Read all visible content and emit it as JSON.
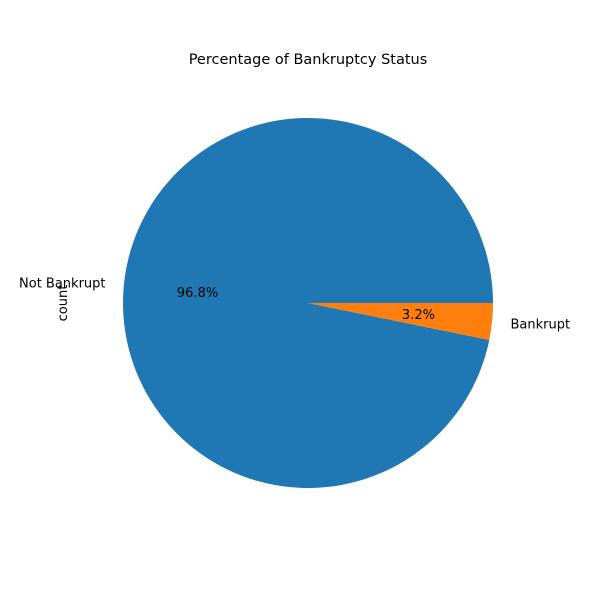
{
  "chart_data": {
    "type": "pie",
    "title": "Percentage of Bankruptcy Status",
    "ylabel": "count",
    "slices": [
      {
        "label": "Not Bankrupt",
        "value": 96.8,
        "pct_label": "96.8%",
        "color": "#1f77b4"
      },
      {
        "label": "Bankrupt",
        "value": 3.2,
        "pct_label": "3.2%",
        "color": "#ff7f0e"
      }
    ],
    "start_angle_deg": 0,
    "direction": "counterclockwise"
  }
}
